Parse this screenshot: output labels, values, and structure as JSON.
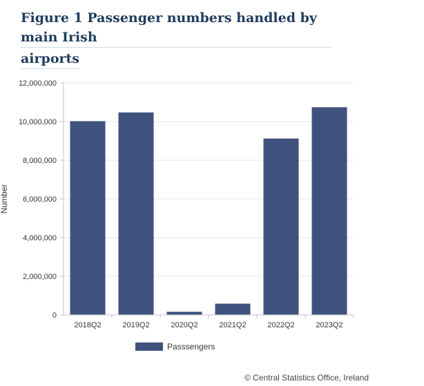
{
  "title_lines": [
    "Figure 1 Passenger numbers handled by main Irish",
    "airports"
  ],
  "credit": "© Central Statistics Office, Ireland",
  "colors": {
    "bar": "#3f527e",
    "grid": "#e6e6e6",
    "axis": "#c0c0c0",
    "text": "#333333",
    "title": "#1f3c5c"
  },
  "chart_data": {
    "type": "bar",
    "title": "Figure 1 Passenger numbers handled by main Irish airports",
    "xlabel": "",
    "ylabel": "Number",
    "categories": [
      "2018Q2",
      "2019Q2",
      "2020Q2",
      "2021Q2",
      "2022Q2",
      "2023Q2"
    ],
    "series": [
      {
        "name": "Passsengers",
        "values": [
          10020000,
          10470000,
          160000,
          580000,
          9120000,
          10740000
        ]
      }
    ],
    "ylim": [
      0,
      12000000
    ],
    "yticks": [
      0,
      2000000,
      4000000,
      6000000,
      8000000,
      10000000,
      12000000
    ],
    "ytick_labels": [
      "0",
      "2,000,000",
      "4,000,000",
      "6,000,000",
      "8,000,000",
      "10,000,000",
      "12,000,000"
    ],
    "grid": true,
    "legend": "bottom-center"
  }
}
